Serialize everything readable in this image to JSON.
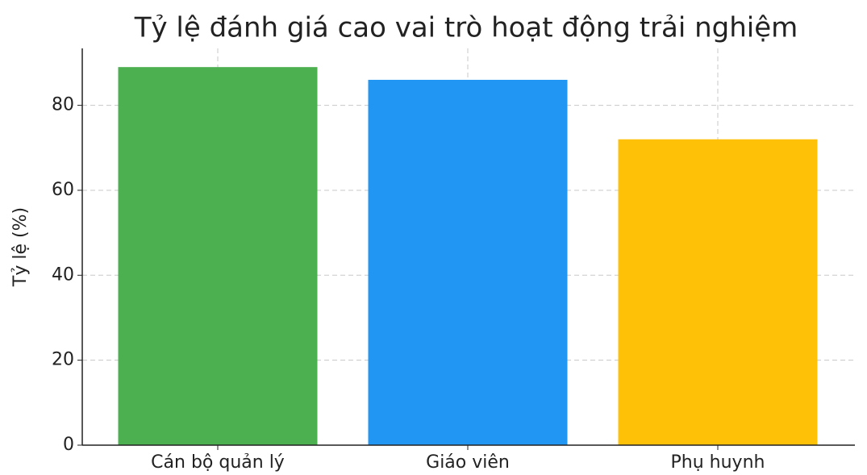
{
  "chart_data": {
    "type": "bar",
    "title": "Tỷ lệ đánh giá cao vai trò hoạt động trải nghiệm",
    "ylabel": "Tỷ lệ (%)",
    "categories": [
      "Cán bộ quản lý",
      "Giáo viên",
      "Phụ huynh"
    ],
    "values": [
      89,
      86,
      72
    ],
    "colors": [
      "#4caf50",
      "#2196f3",
      "#ffc107"
    ],
    "ylim": [
      0,
      93.4
    ],
    "yticks": [
      0,
      20,
      40,
      60,
      80
    ],
    "grid": true
  }
}
